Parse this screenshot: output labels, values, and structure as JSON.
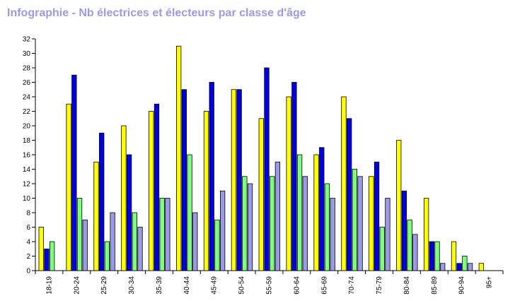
{
  "chart_data": {
    "type": "bar",
    "title": "Infographie - Nb électrices et électeurs par classe d'âge",
    "xlabel": "",
    "ylabel": "",
    "ylim": [
      0,
      32
    ],
    "yticks": [
      0,
      2,
      4,
      6,
      8,
      10,
      12,
      14,
      16,
      18,
      20,
      22,
      24,
      26,
      28,
      30,
      32
    ],
    "grid": false,
    "legend": "none",
    "categories": [
      "18-19",
      "20-24",
      "25-29",
      "30-34",
      "35-39",
      "40-44",
      "45-49",
      "50-54",
      "55-59",
      "60-64",
      "65-69",
      "70-74",
      "75-79",
      "80-84",
      "85-89",
      "90-94",
      "95+"
    ],
    "series": [
      {
        "color": "#ffff00",
        "values": [
          6,
          23,
          15,
          20,
          22,
          31,
          22,
          25,
          21,
          24,
          16,
          24,
          13,
          18,
          10,
          4,
          1
        ]
      },
      {
        "color": "#0000e0",
        "values": [
          3,
          27,
          19,
          16,
          23,
          25,
          26,
          25,
          28,
          26,
          17,
          21,
          15,
          11,
          4,
          1,
          0
        ]
      },
      {
        "color": "#7fff7f",
        "values": [
          4,
          10,
          4,
          8,
          10,
          16,
          7,
          13,
          13,
          16,
          12,
          14,
          6,
          7,
          4,
          2,
          0
        ]
      },
      {
        "color": "#9a9ae6",
        "values": [
          0,
          7,
          8,
          6,
          10,
          8,
          11,
          12,
          15,
          13,
          10,
          13,
          10,
          5,
          1,
          1,
          0
        ]
      }
    ]
  }
}
